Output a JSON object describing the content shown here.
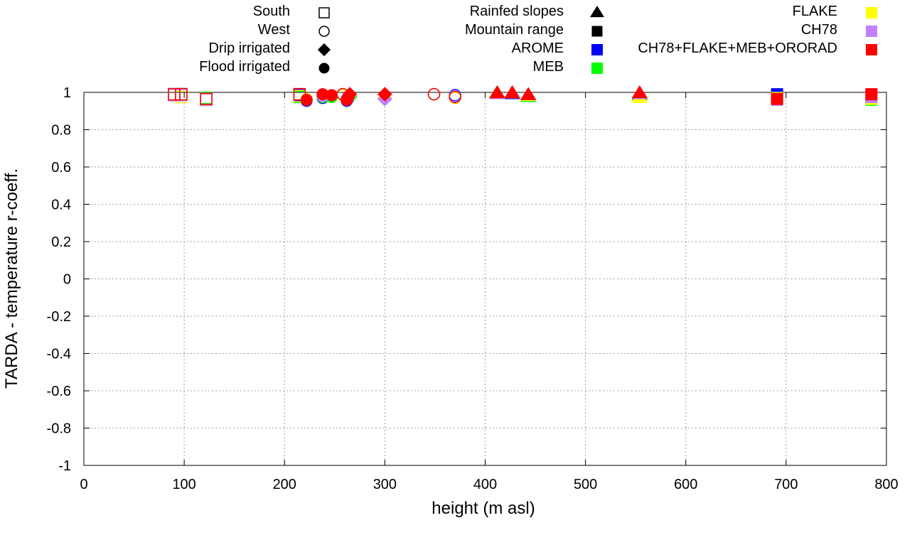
{
  "chart_data": {
    "type": "scatter",
    "title": "",
    "xlabel": "height (m asl)",
    "ylabel": "TARDA - temperature r-coeff.",
    "xlim": [
      0,
      800
    ],
    "ylim": [
      -1,
      1
    ],
    "grid": true,
    "xticks": [
      "0",
      "100",
      "200",
      "300",
      "400",
      "500",
      "600",
      "700",
      "800"
    ],
    "yticks": [
      "1",
      "0.8",
      "0.6",
      "0.4",
      "0.2",
      "0",
      "-0.2",
      "-0.4",
      "-0.6",
      "-0.8",
      "-1"
    ],
    "legend_position": "top",
    "site_types": [
      {
        "name": "South",
        "shape": "square",
        "filled": false
      },
      {
        "name": "West",
        "shape": "circle",
        "filled": false
      },
      {
        "name": "Drip irrigated",
        "shape": "diamond",
        "filled": true
      },
      {
        "name": "Flood irrigated",
        "shape": "circle",
        "filled": true
      },
      {
        "name": "Rainfed slopes",
        "shape": "triangle",
        "filled": true
      },
      {
        "name": "Mountain range",
        "shape": "square",
        "filled": true
      }
    ],
    "models": [
      {
        "name": "AROME",
        "color": "#0000ff"
      },
      {
        "name": "MEB",
        "color": "#00ff00"
      },
      {
        "name": "FLAKE",
        "color": "#ffff00"
      },
      {
        "name": "CH78",
        "color": "#c080ff"
      },
      {
        "name": "CH78+FLAKE+MEB+ORORAD",
        "color": "#ff0000"
      }
    ],
    "points": [
      {
        "type": "South",
        "x": 90,
        "values": [
          0.99,
          0.99,
          0.99,
          0.985,
          0.99
        ]
      },
      {
        "type": "South",
        "x": 97,
        "values": [
          0.99,
          0.99,
          0.975,
          0.985,
          0.99
        ]
      },
      {
        "type": "South",
        "x": 122,
        "values": [
          0.97,
          0.97,
          0.965,
          0.96,
          0.965
        ]
      },
      {
        "type": "South",
        "x": 215,
        "values": [
          0.985,
          0.975,
          0.98,
          0.99,
          0.99
        ]
      },
      {
        "type": "West",
        "x": 258,
        "values": [
          0.99,
          0.985,
          0.985,
          0.99,
          0.99
        ]
      },
      {
        "type": "West",
        "x": 349,
        "values": [
          0.99,
          0.99,
          0.99,
          0.99,
          0.99
        ]
      },
      {
        "type": "West",
        "x": 370,
        "values": [
          0.985,
          0.975,
          0.97,
          0.98,
          0.975
        ]
      },
      {
        "type": "Drip irrigated",
        "x": 265,
        "values": [
          0.98,
          0.975,
          0.985,
          0.99,
          0.99
        ]
      },
      {
        "type": "Drip irrigated",
        "x": 300,
        "values": [
          0.965,
          0.97,
          0.97,
          0.965,
          0.99
        ]
      },
      {
        "type": "Flood irrigated",
        "x": 222,
        "values": [
          0.955,
          0.96,
          0.965,
          0.96,
          0.96
        ]
      },
      {
        "type": "Flood irrigated",
        "x": 238,
        "values": [
          0.97,
          0.975,
          0.98,
          0.98,
          0.99
        ]
      },
      {
        "type": "Flood irrigated",
        "x": 247,
        "values": [
          0.98,
          0.975,
          0.985,
          0.985,
          0.985
        ]
      },
      {
        "type": "Flood irrigated",
        "x": 262,
        "values": [
          0.955,
          0.96,
          0.96,
          0.965,
          0.96
        ]
      },
      {
        "type": "Flood irrigated",
        "x": 264,
        "values": [
          0.97,
          0.975,
          0.98,
          0.98,
          0.98
        ]
      },
      {
        "type": "Rainfed slopes",
        "x": 412,
        "values": [
          0.995,
          0.995,
          0.995,
          0.99,
          0.995
        ]
      },
      {
        "type": "Rainfed slopes",
        "x": 427,
        "values": [
          0.99,
          0.995,
          0.995,
          0.995,
          0.995
        ]
      },
      {
        "type": "Rainfed slopes",
        "x": 443,
        "values": [
          0.985,
          0.975,
          0.98,
          0.985,
          0.985
        ]
      },
      {
        "type": "Rainfed slopes",
        "x": 554,
        "values": [
          0.985,
          0.985,
          0.97,
          0.99,
          0.995
        ]
      },
      {
        "type": "Mountain range",
        "x": 691,
        "values": [
          0.99,
          0.97,
          0.97,
          0.96,
          0.965
        ]
      },
      {
        "type": "Mountain range",
        "x": 785,
        "values": [
          0.98,
          0.96,
          0.965,
          0.975,
          0.99
        ]
      }
    ]
  }
}
